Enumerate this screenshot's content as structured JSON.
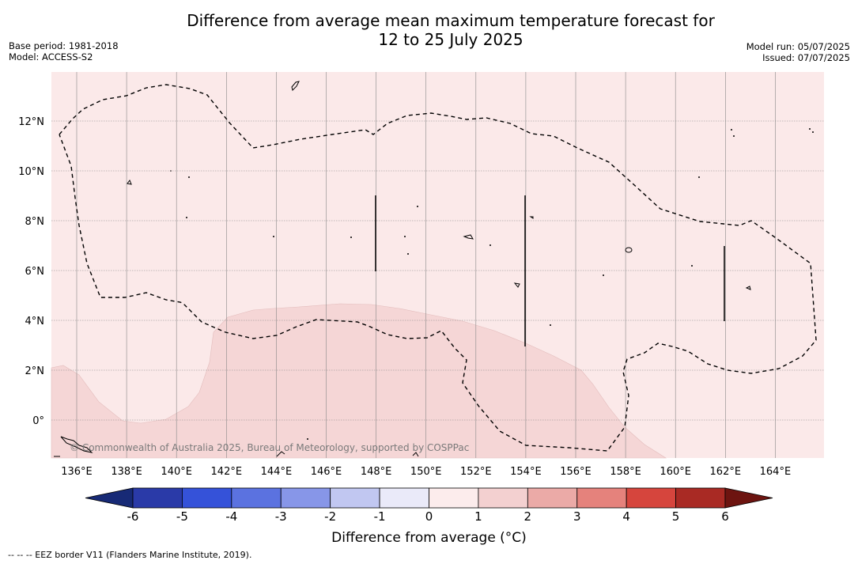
{
  "title": {
    "line1": "Difference from average mean maximum temperature forecast for",
    "line2": "12 to 25 July 2025"
  },
  "meta": {
    "base_period": "Base period: 1981-2018",
    "model": "Model: ACCESS-S2",
    "model_run": "Model run: 05/07/2025",
    "issued": "Issued: 07/07/2025"
  },
  "map": {
    "x_ticks": [
      "136°E",
      "138°E",
      "140°E",
      "142°E",
      "144°E",
      "146°E",
      "148°E",
      "150°E",
      "152°E",
      "154°E",
      "156°E",
      "158°E",
      "160°E",
      "162°E",
      "164°E"
    ],
    "y_ticks": [
      "12°N",
      "10°N",
      "8°N",
      "6°N",
      "4°N",
      "2°N",
      "0°"
    ],
    "attribution": "© Commonwealth of Australia 2025, Bureau of Meteorology, supported by COSPPac",
    "colors": {
      "background_anomaly_0_1": "#fbe9e9",
      "anomaly_1_2": "#f5d6d6",
      "land": "#000000"
    }
  },
  "colorbar": {
    "title": "Difference from average (°C)",
    "ticks": [
      "-6",
      "-5",
      "-4",
      "-3",
      "-2",
      "-1",
      "0",
      "1",
      "2",
      "3",
      "4",
      "5",
      "6"
    ],
    "colors": [
      "#172a76",
      "#2a3aa8",
      "#3552d9",
      "#5b72e0",
      "#8796e8",
      "#c1c7f1",
      "#eaeaf9",
      "#fcecec",
      "#f3d0d0",
      "#ebaaa7",
      "#e5827c",
      "#d6453d",
      "#a92a24",
      "#6d1410"
    ]
  },
  "footnote": "-- -- -- EEZ border V11 (Flanders Marine Institute, 2019)."
}
